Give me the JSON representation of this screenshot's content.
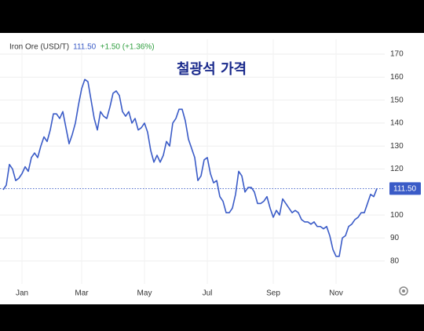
{
  "chart_data": {
    "type": "line",
    "title": "철광석 가격",
    "header": {
      "instrument": "Iron Ore (USD/T)",
      "price": "111.50",
      "change": "+1.50 (+1.36%)"
    },
    "categories": [
      null,
      null,
      null,
      null,
      null,
      null,
      "Jan",
      null,
      null,
      null,
      null,
      null,
      null,
      null,
      null,
      null,
      null,
      null,
      null,
      null,
      null,
      null,
      null,
      null,
      null,
      "Mar",
      null,
      null,
      null,
      null,
      null,
      null,
      null,
      null,
      null,
      null,
      null,
      null,
      null,
      null,
      null,
      null,
      null,
      null,
      null,
      "May",
      null,
      null,
      null,
      null,
      null,
      null,
      null,
      null,
      null,
      null,
      null,
      null,
      null,
      null,
      null,
      null,
      null,
      null,
      null,
      "Jul",
      null,
      null,
      null,
      null,
      null,
      null,
      null,
      null,
      null,
      null,
      null,
      null,
      null,
      null,
      null,
      null,
      null,
      null,
      null,
      null,
      "Sep",
      null,
      null,
      null,
      null,
      null,
      null,
      null,
      null,
      null,
      null,
      null,
      null,
      null,
      null,
      null,
      null,
      null,
      null,
      null,
      "Nov",
      null,
      null,
      null,
      null,
      null,
      null,
      null,
      null,
      null,
      null,
      null,
      null,
      null
    ],
    "series": [
      {
        "name": "Iron Ore (USD/T)",
        "color": "#3a5bc7",
        "values": [
          111,
          113,
          122,
          120,
          115,
          116,
          118,
          121,
          119,
          125,
          127,
          125,
          130,
          134,
          132,
          137,
          144,
          144,
          142,
          145,
          138,
          131,
          135,
          140,
          148,
          155,
          159,
          158,
          150,
          142,
          137,
          145,
          143,
          142,
          147,
          153,
          154,
          152,
          145,
          143,
          145,
          140,
          142,
          137,
          138,
          140,
          136,
          128,
          123,
          126,
          123,
          126,
          132,
          130,
          140,
          142,
          146,
          146,
          141,
          133,
          129,
          125,
          115,
          117,
          124,
          125,
          118,
          114,
          115,
          108,
          106,
          101,
          101,
          103,
          109,
          119,
          117,
          110,
          112,
          112,
          110,
          105,
          105,
          106,
          108,
          103,
          99,
          102,
          100,
          107,
          105,
          103,
          101,
          102,
          101,
          98,
          97,
          97,
          96,
          97,
          95,
          95,
          94,
          95,
          91,
          85,
          82,
          82,
          90,
          91,
          95,
          96,
          98,
          99,
          101,
          101,
          105,
          109,
          108,
          111.5
        ]
      }
    ],
    "ylim": [
      70,
      175
    ],
    "yticks": [
      80,
      90,
      100,
      120,
      130,
      140,
      150,
      160,
      170
    ],
    "grid": true
  }
}
